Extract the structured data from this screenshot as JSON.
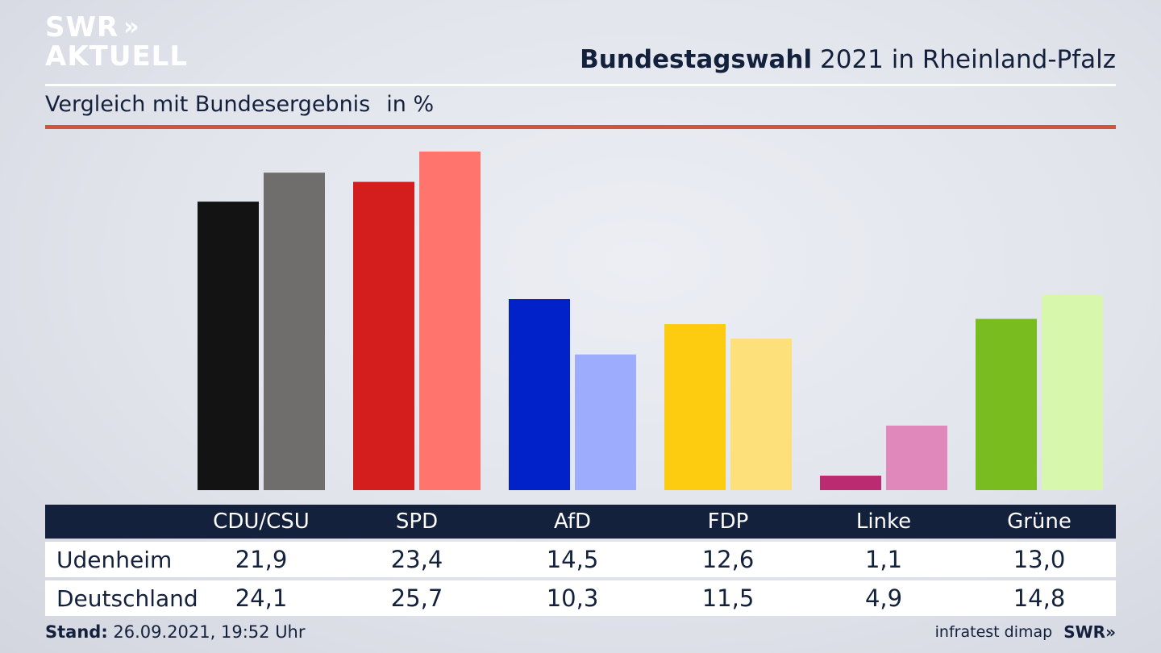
{
  "logo": {
    "line1": "SWR",
    "line2": "AKTUELL",
    "chevrons": "»"
  },
  "header": {
    "title_bold": "Bundestagswahl",
    "title_rest": "2021 in Rheinland-Pfalz"
  },
  "subtitle": {
    "text": "Vergleich mit Bundesergebnis",
    "unit": "in %"
  },
  "chart_data": {
    "type": "bar",
    "categories": [
      "CDU/CSU",
      "SPD",
      "AfD",
      "FDP",
      "Linke",
      "Grüne"
    ],
    "series": [
      {
        "name": "Udenheim",
        "values": [
          21.9,
          23.4,
          14.5,
          12.6,
          1.1,
          13.0
        ],
        "labels": [
          "21,9",
          "23,4",
          "14,5",
          "12,6",
          "1,1",
          "13,0"
        ]
      },
      {
        "name": "Deutschland",
        "values": [
          24.1,
          25.7,
          10.3,
          11.5,
          4.9,
          14.8
        ],
        "labels": [
          "24,1",
          "25,7",
          "10,3",
          "11,5",
          "4,9",
          "14,8"
        ]
      }
    ],
    "colors": {
      "primary": [
        "#131313",
        "#d41e1e",
        "#0022c8",
        "#fdcb0f",
        "#bb2b72",
        "#78bc1f"
      ],
      "secondary": [
        "#6f6e6c",
        "#ff756d",
        "#9eacfe",
        "#fde07a",
        "#e088bb",
        "#d6f7ac"
      ]
    },
    "ylim": [
      0,
      25.7
    ],
    "grid": false,
    "legend": "table-below"
  },
  "footer": {
    "stand_label": "Stand:",
    "stand_value": "26.09.2021, 19:52 Uhr",
    "source": "infratest dimap",
    "brand": "SWR",
    "brand_chevrons": "»"
  }
}
